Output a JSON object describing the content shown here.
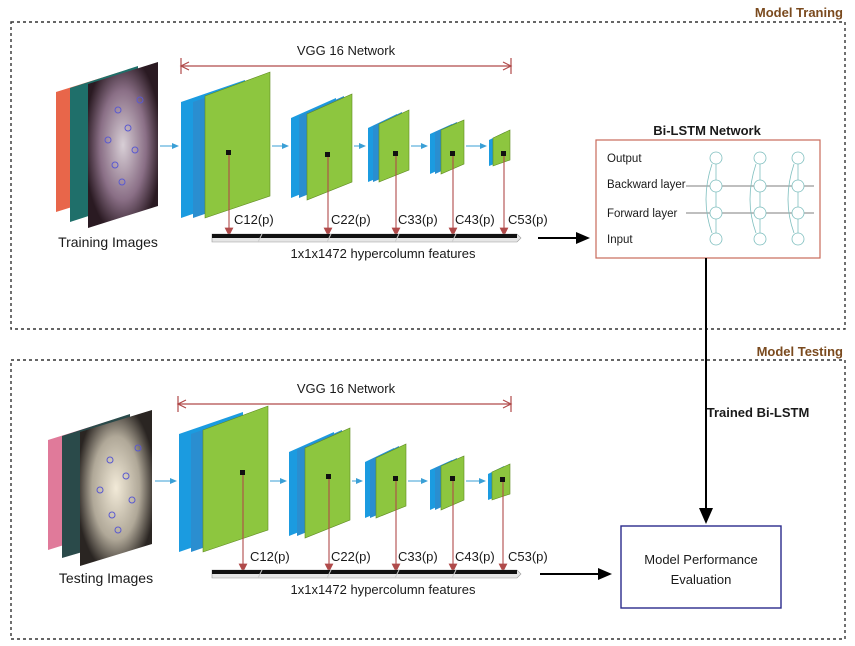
{
  "sections": {
    "training": "Model Traning",
    "testing": "Model Testing"
  },
  "vgg_label": "VGG 16 Network",
  "features_label": "1x1x1472  hypercolumn features",
  "layer_labels": [
    "C12(p)",
    "C22(p)",
    "C33(p)",
    "C43(p)",
    "C53(p)"
  ],
  "training_images_label": "Training Images",
  "testing_images_label": "Testing Images",
  "bilstm": {
    "title": "Bi-LSTM Network",
    "rows": [
      "Output",
      "Backward layer",
      "Forward layer",
      "Input"
    ]
  },
  "trained_label": "Trained Bi-LSTM",
  "evaluation": {
    "line1": "Model Performance",
    "line2": "Evaluation"
  },
  "colors": {
    "feature_map_green": "#8dc63f",
    "feature_map_blue": "#1b9be0",
    "border_red": "#b04a4a",
    "eval_border": "#2b2b8c",
    "section_title": "#7a4a1e"
  }
}
